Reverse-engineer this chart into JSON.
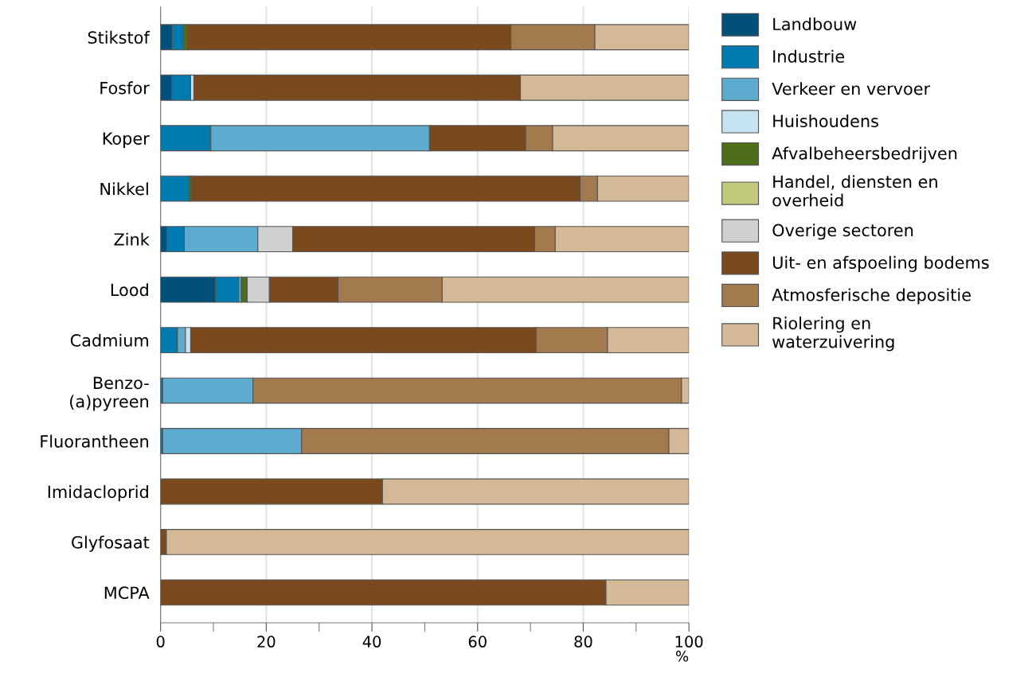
{
  "chart_data": {
    "type": "bar",
    "orientation": "horizontal",
    "stacked": true,
    "xlabel": "%",
    "categories": [
      "Stikstof",
      "Fosfor",
      "Koper",
      "Nikkel",
      "Zink",
      "Lood",
      "Cadmium",
      "Benzo-\n(a)pyreen",
      "Fluorantheen",
      "Imidacloprid",
      "Glyfosaat",
      "MCPA"
    ],
    "series": [
      {
        "name": "Landbouw",
        "color": "#00507a",
        "values": [
          2.2,
          2.1,
          null,
          null,
          1.2,
          10.4,
          null,
          null,
          null,
          null,
          null,
          null
        ]
      },
      {
        "name": "Industrie",
        "color": "#007bb0",
        "values": [
          2.2,
          3.6,
          9.5,
          5.4,
          3.3,
          4.4,
          3.2,
          0.4,
          0.4,
          null,
          null,
          null
        ]
      },
      {
        "name": "Verkeer en vervoer",
        "color": "#5eabd0",
        "values": [
          null,
          null,
          41.4,
          null,
          13.9,
          0.5,
          1.5,
          17.1,
          26.3,
          null,
          null,
          null
        ]
      },
      {
        "name": "Huishoudens",
        "color": "#c6e3f2",
        "values": [
          null,
          0.6,
          null,
          null,
          null,
          null,
          1.0,
          null,
          null,
          null,
          null,
          null
        ]
      },
      {
        "name": "Afvalbeheersbedrijven",
        "color": "#4f6e1a",
        "values": [
          0.7,
          null,
          null,
          0.4,
          null,
          1.1,
          null,
          null,
          null,
          null,
          null,
          null
        ]
      },
      {
        "name": "Handel, diensten en\noverheid",
        "color": "#c2c97a",
        "values": [
          null,
          null,
          null,
          null,
          null,
          null,
          null,
          null,
          null,
          null,
          null,
          null
        ]
      },
      {
        "name": "Overige sectoren",
        "color": "#d0d0d0",
        "values": [
          null,
          null,
          null,
          null,
          6.6,
          4.2,
          null,
          null,
          null,
          null,
          null,
          null
        ]
      },
      {
        "name": "Uit- en afspoeling bodems",
        "color": "#7a4a1e",
        "values": [
          61.2,
          61.8,
          18.2,
          73.6,
          45.8,
          13.0,
          65.4,
          null,
          null,
          42.0,
          1.1,
          84.3
        ]
      },
      {
        "name": "Atmosferische depositie",
        "color": "#a27a4e",
        "values": [
          15.9,
          null,
          5.1,
          3.3,
          3.9,
          19.7,
          13.5,
          81.1,
          69.5,
          null,
          null,
          null
        ]
      },
      {
        "name": "Riolering en\nwaterzuivering",
        "color": "#d4b997",
        "values": [
          17.8,
          31.9,
          25.8,
          17.3,
          25.3,
          46.7,
          15.4,
          1.4,
          3.8,
          58.0,
          98.9,
          15.7
        ]
      }
    ],
    "xlim": [
      0,
      100
    ],
    "xticks": [
      0,
      {
        "value": 10,
        "label": null
      },
      20,
      {
        "value": 30,
        "label": null
      },
      40,
      {
        "value": 50,
        "label": null
      },
      60,
      {
        "value": 70,
        "label": null
      },
      80,
      {
        "value": 90,
        "label": null
      },
      100
    ],
    "grid": "x",
    "legend": "right"
  }
}
